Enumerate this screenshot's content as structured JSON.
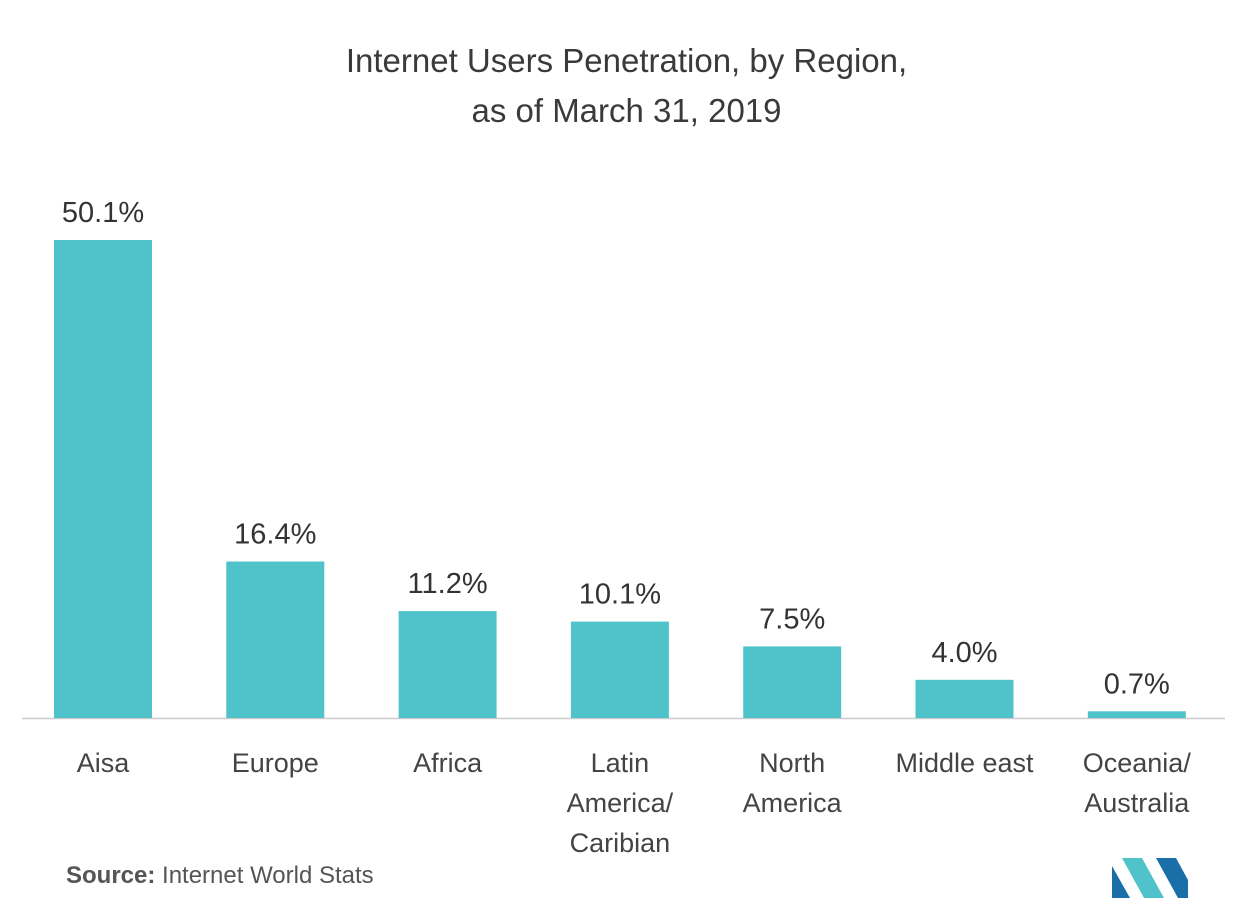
{
  "chart_data": {
    "type": "bar",
    "title": "Internet Users Penetration, by Region,",
    "subtitle": "as of March 31, 2019",
    "categories": [
      [
        "Aisa"
      ],
      [
        "Europe"
      ],
      [
        "Africa"
      ],
      [
        "Latin",
        "America/",
        "Caribian"
      ],
      [
        "North",
        "America"
      ],
      [
        "Middle east"
      ],
      [
        "Oceania/",
        "Australia"
      ]
    ],
    "values": [
      50.1,
      16.4,
      11.2,
      10.1,
      7.5,
      4.0,
      0.7
    ],
    "value_labels": [
      "50.1%",
      "16.4%",
      "11.2%",
      "10.1%",
      "7.5%",
      "4.0%",
      "0.7%"
    ],
    "ylim": [
      0,
      50.1
    ],
    "grid": false,
    "bar_color": "#4fc3c9",
    "axis_color": "#cccccc"
  },
  "source": {
    "label": "Source:",
    "text": " Internet World Stats"
  },
  "logo": {
    "colors": [
      "#1b6fa8",
      "#4fc3c9"
    ]
  }
}
